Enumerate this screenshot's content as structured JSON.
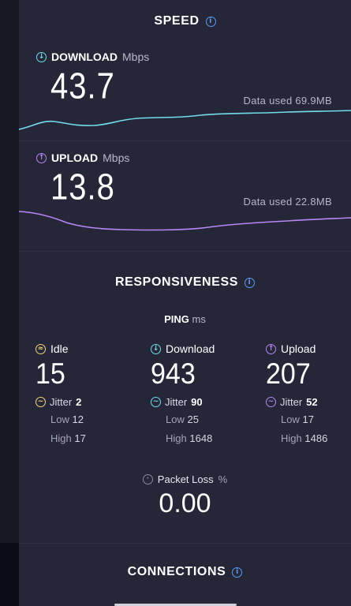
{
  "speed": {
    "title": "SPEED",
    "download": {
      "label": "DOWNLOAD",
      "unit": "Mbps",
      "value": "43.7",
      "data_used": "Data used 69.9MB",
      "color": "#74dcea"
    },
    "upload": {
      "label": "UPLOAD",
      "unit": "Mbps",
      "value": "13.8",
      "data_used": "Data used 22.8MB",
      "color": "#b787f5"
    }
  },
  "responsiveness": {
    "title": "RESPONSIVENESS",
    "ping_label": "PING",
    "ping_unit": "ms",
    "columns": [
      {
        "label": "Idle",
        "value": "15",
        "jitter_label": "Jitter",
        "jitter": "2",
        "low_label": "Low",
        "low": "12",
        "high_label": "High",
        "high": "17",
        "icon": "idle-icon",
        "color": "#f3d67a"
      },
      {
        "label": "Download",
        "value": "943",
        "jitter_label": "Jitter",
        "jitter": "90",
        "low_label": "Low",
        "low": "25",
        "high_label": "High",
        "high": "1648",
        "icon": "download-icon",
        "color": "#74dcea"
      },
      {
        "label": "Upload",
        "value": "207",
        "jitter_label": "Jitter",
        "jitter": "52",
        "low_label": "Low",
        "low": "17",
        "high_label": "High",
        "high": "1486",
        "icon": "upload-icon",
        "color": "#b787f5"
      }
    ],
    "packet_loss": {
      "label": "Packet Loss",
      "unit": "%",
      "value": "0.00"
    }
  },
  "connections": {
    "title": "CONNECTIONS"
  }
}
